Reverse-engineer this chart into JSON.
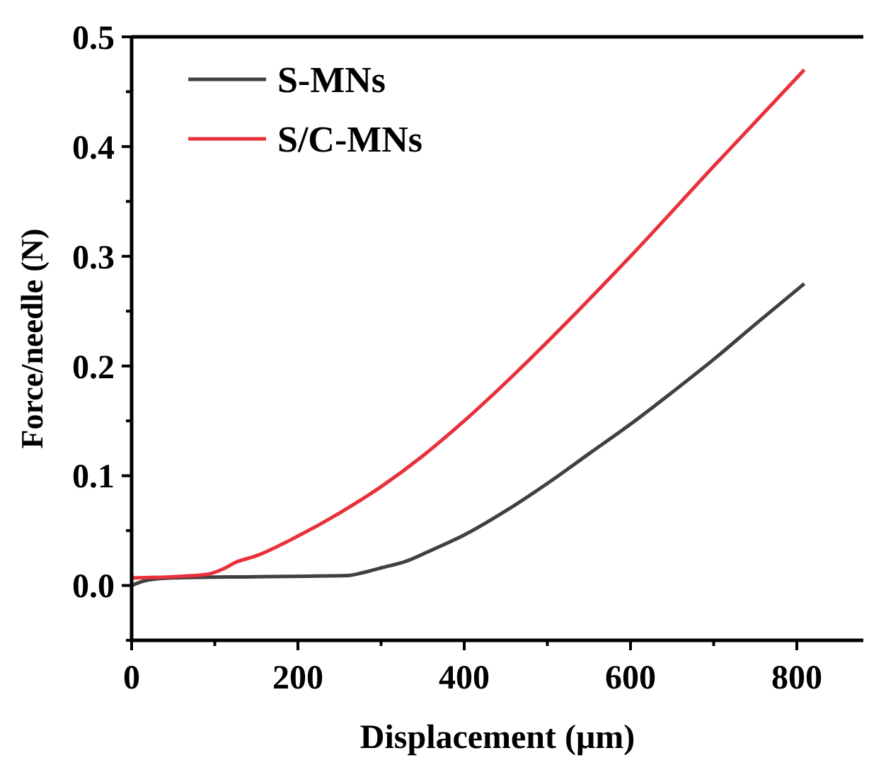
{
  "chart_data": {
    "type": "line",
    "xlabel": "Displacement (μm)",
    "ylabel": "Force/needle (N)",
    "xlim": [
      0,
      880
    ],
    "ylim": [
      -0.05,
      0.5
    ],
    "xticks": [
      0,
      {
        "value": 100,
        "label": null
      },
      200,
      {
        "value": 300,
        "label": null
      },
      400,
      {
        "value": 500,
        "label": null
      },
      600,
      {
        "value": 700,
        "label": null
      },
      800
    ],
    "yticks": [
      {
        "value": -0.05,
        "label": null
      },
      "0.0",
      {
        "value": 0.05,
        "label": null
      },
      0.1,
      {
        "value": 0.15,
        "label": null
      },
      0.2,
      {
        "value": 0.25,
        "label": null
      },
      0.3,
      {
        "value": 0.35,
        "label": null
      },
      0.4,
      {
        "value": 0.45,
        "label": null
      },
      0.5
    ],
    "legend": "top left",
    "grid": false,
    "marker": "none",
    "line_style": "solid",
    "series": [
      {
        "name": "S-MNs",
        "color": "#404040",
        "x": [
          0,
          20,
          50,
          150,
          260,
          280,
          300,
          330,
          360,
          400,
          450,
          500,
          550,
          600,
          650,
          700,
          750,
          809
        ],
        "values": [
          0,
          0.005,
          0.007,
          0.008,
          0.009,
          0.012,
          0.016,
          0.022,
          0.032,
          0.046,
          0.068,
          0.093,
          0.12,
          0.147,
          0.176,
          0.206,
          0.238,
          0.275
        ]
      },
      {
        "name": "S/C-MNs",
        "color": "#e8313a",
        "x": [
          0,
          50,
          90,
          110,
          125,
          150,
          200,
          250,
          300,
          350,
          400,
          450,
          500,
          600,
          700,
          809
        ],
        "values": [
          0.007,
          0.008,
          0.01,
          0.015,
          0.021,
          0.027,
          0.045,
          0.066,
          0.09,
          0.118,
          0.15,
          0.185,
          0.222,
          0.3,
          0.382,
          0.47
        ]
      }
    ]
  }
}
